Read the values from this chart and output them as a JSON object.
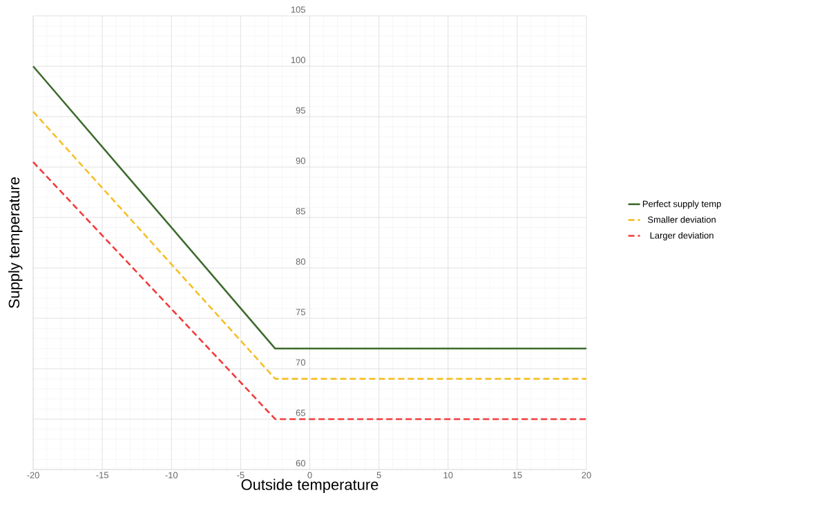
{
  "chart_data": {
    "type": "line",
    "xlabel": "Outside temperature",
    "ylabel": "Supply temperature",
    "xlim": [
      -20,
      20
    ],
    "ylim": [
      60,
      105
    ],
    "xticks": [
      -20,
      -15,
      -10,
      -5,
      0,
      5,
      10,
      15,
      20
    ],
    "yticks": [
      60,
      65,
      70,
      75,
      80,
      85,
      90,
      95,
      100,
      105
    ],
    "grid": true,
    "legend": "right",
    "marker": "none",
    "series": [
      {
        "name": "Perfect supply temp",
        "color": "#3d6b2e",
        "line_style": "solid",
        "x": [
          -20,
          -2.5,
          20
        ],
        "values": [
          100,
          72,
          72
        ]
      },
      {
        "name": "Smaller deviation",
        "color": "#f5bf26",
        "line_style": "dashed",
        "x": [
          -20,
          -2.5,
          20
        ],
        "values": [
          95.5,
          69,
          69
        ]
      },
      {
        "name": "Larger deviation",
        "color": "#f23b3b",
        "line_style": "dashed",
        "x": [
          -20,
          -2.5,
          20
        ],
        "values": [
          90.5,
          65,
          65
        ]
      }
    ]
  }
}
